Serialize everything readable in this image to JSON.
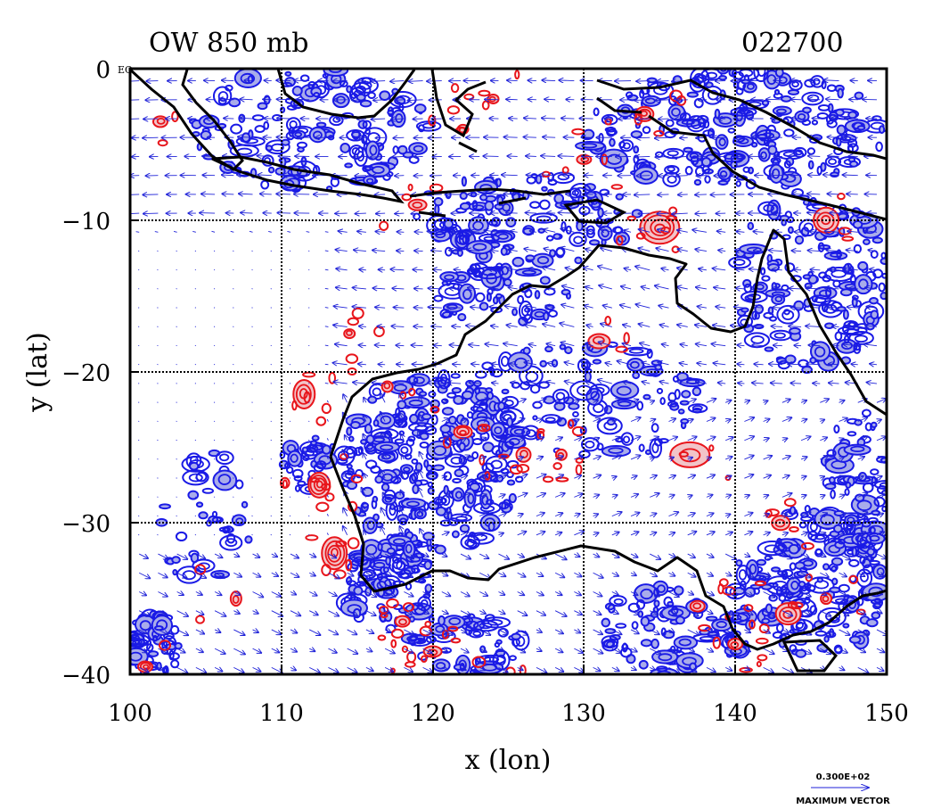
{
  "title_left": "OW 850 mb",
  "title_right": "022700",
  "corner_label": "EQ",
  "legend": {
    "max_value": "0.300E+02",
    "label": "MAXIMUM VECTOR"
  },
  "colors": {
    "positive_contour": "#e8151b",
    "positive_fill": "#f2c4c8",
    "negative_contour": "#1a1ae6",
    "negative_fill": "#a9acea",
    "vector": "#1f22d8",
    "coastline": "#000000"
  },
  "chart_data": {
    "type": "map",
    "title": "OW 850 mb",
    "xlabel": "x (lon)",
    "ylabel": "y (lat)",
    "xlim": [
      100,
      150
    ],
    "ylim": [
      -40,
      0
    ],
    "x_ticks": [
      "100",
      "110",
      "120",
      "130",
      "140",
      "150"
    ],
    "y_ticks": [
      "0",
      "−10",
      "−20",
      "−30",
      "−40"
    ],
    "grid": true,
    "max_vector": 30
  }
}
